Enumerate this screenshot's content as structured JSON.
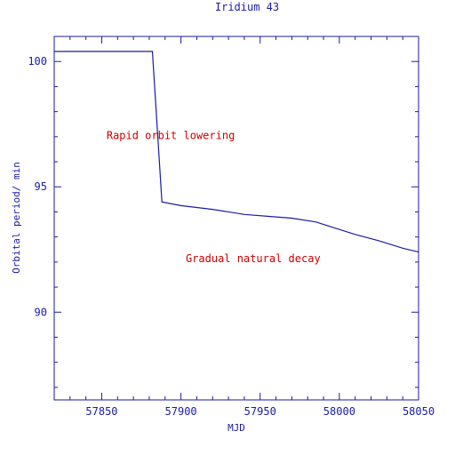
{
  "chart_data": {
    "type": "line",
    "title": "Iridium 43",
    "xlabel": "MJD",
    "ylabel": "Orbital period/ min",
    "xlim": [
      57820,
      58050
    ],
    "ylim": [
      86.5,
      101
    ],
    "xticks": [
      57850,
      57900,
      57950,
      58000,
      58050
    ],
    "yticks": [
      90,
      95,
      100
    ],
    "grid": false,
    "series": [
      {
        "x": [
          57820,
          57882,
          57888,
          57900,
          57920,
          57940,
          57960,
          57970,
          57985,
          58000,
          58010,
          58025,
          58040,
          58050
        ],
        "y": [
          100.4,
          100.4,
          94.4,
          94.25,
          94.1,
          93.9,
          93.8,
          93.75,
          93.6,
          93.3,
          93.1,
          92.85,
          92.55,
          92.4
        ]
      }
    ],
    "annotations": [
      {
        "text": "Rapid orbit lowering",
        "x": 57853,
        "y": 96.9
      },
      {
        "text": "Gradual natural decay",
        "x": 57903,
        "y": 92.0
      }
    ]
  }
}
